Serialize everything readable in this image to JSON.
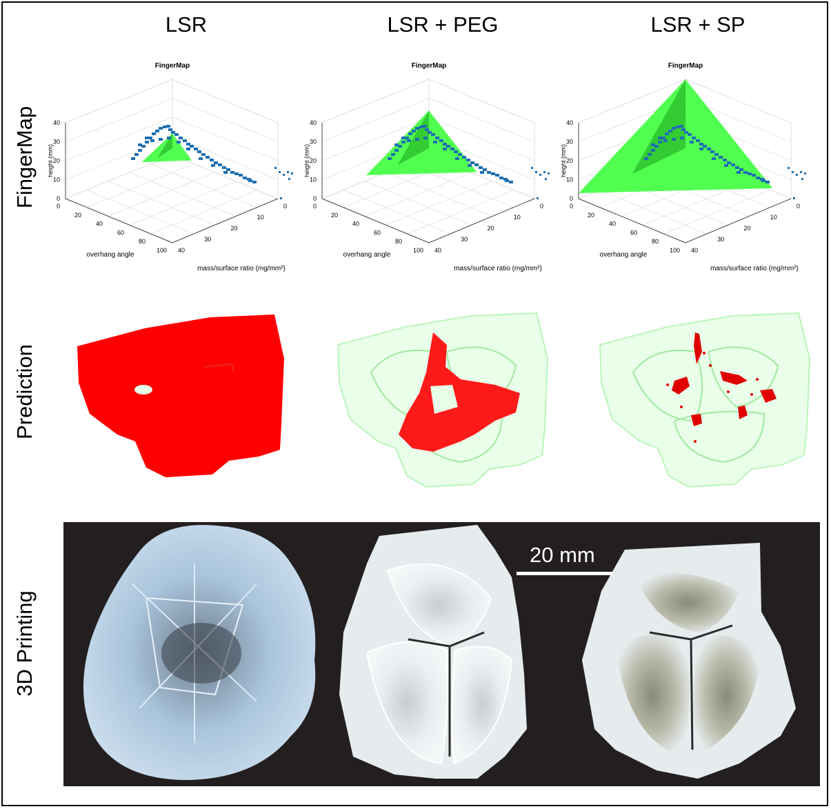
{
  "columns": [
    {
      "title": "LSR",
      "fm_fill": 0.05
    },
    {
      "title": "LSR + PEG",
      "fm_fill": 0.45
    },
    {
      "title": "LSR + SP",
      "fm_fill": 1.0
    }
  ],
  "rows": {
    "fingermap": "FingerMap",
    "prediction": "Prediction",
    "printing": "3D Printing"
  },
  "fingermap_plot": {
    "title": "FingerMap",
    "zlabel": "height (mm)",
    "xlabel": "overhang angle",
    "ylabel": "mass/surface ratio (mg/mm²)",
    "z_ticks": [
      "0",
      "10",
      "20",
      "30",
      "40"
    ],
    "x_ticks": [
      "0",
      "20",
      "40",
      "60",
      "80",
      "100"
    ],
    "y_ticks": [
      "0",
      "10",
      "20",
      "30",
      "40"
    ]
  },
  "colors": {
    "points": "#1f6fb2",
    "region": "#33ff33",
    "prediction_fail": "#ff0000",
    "prediction_shell": "#b9f5b9",
    "photo_bg": "#231f20"
  },
  "scale_bar": {
    "label": "20 mm"
  }
}
